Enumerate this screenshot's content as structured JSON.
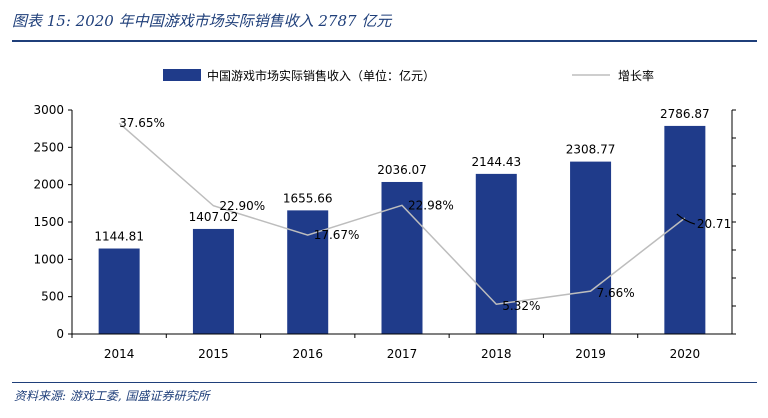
{
  "figure_title": "图表 15: 2020 年中国游戏市场实际销售收入 2787 亿元",
  "source_note": "资料来源: 游戏工委, 国盛证券研究所",
  "colors": {
    "bar": "#1f3b8a",
    "line": "#bdbdbd",
    "accent": "#1f3f7a"
  },
  "chart_data": {
    "type": "bar",
    "categories": [
      "2014",
      "2015",
      "2016",
      "2017",
      "2018",
      "2019",
      "2020"
    ],
    "series": [
      {
        "name": "中国游戏市场实际销售收入（单位：亿元）",
        "type": "bar",
        "axis": "left",
        "values": [
          1144.81,
          1407.02,
          1655.66,
          2036.07,
          2144.43,
          2308.77,
          2786.87
        ],
        "labels": [
          "1144.81",
          "1407.02",
          "1655.66",
          "2036.07",
          "2144.43",
          "2308.77",
          "2786.87"
        ]
      },
      {
        "name": "增长率",
        "type": "line",
        "axis": "right",
        "values": [
          37.65,
          22.9,
          17.67,
          22.98,
          5.32,
          7.66,
          20.71
        ],
        "labels": [
          "37.65%",
          "22.90%",
          "17.67%",
          "22.98%",
          "5.32%",
          "7.66%",
          "20.71"
        ]
      }
    ],
    "yticks": [
      "0",
      "500",
      "1000",
      "1500",
      "2000",
      "2500",
      "3000"
    ],
    "ylim": [
      0,
      3000
    ],
    "y2lim": [
      0,
      40
    ],
    "grid": false,
    "legend": "top"
  }
}
